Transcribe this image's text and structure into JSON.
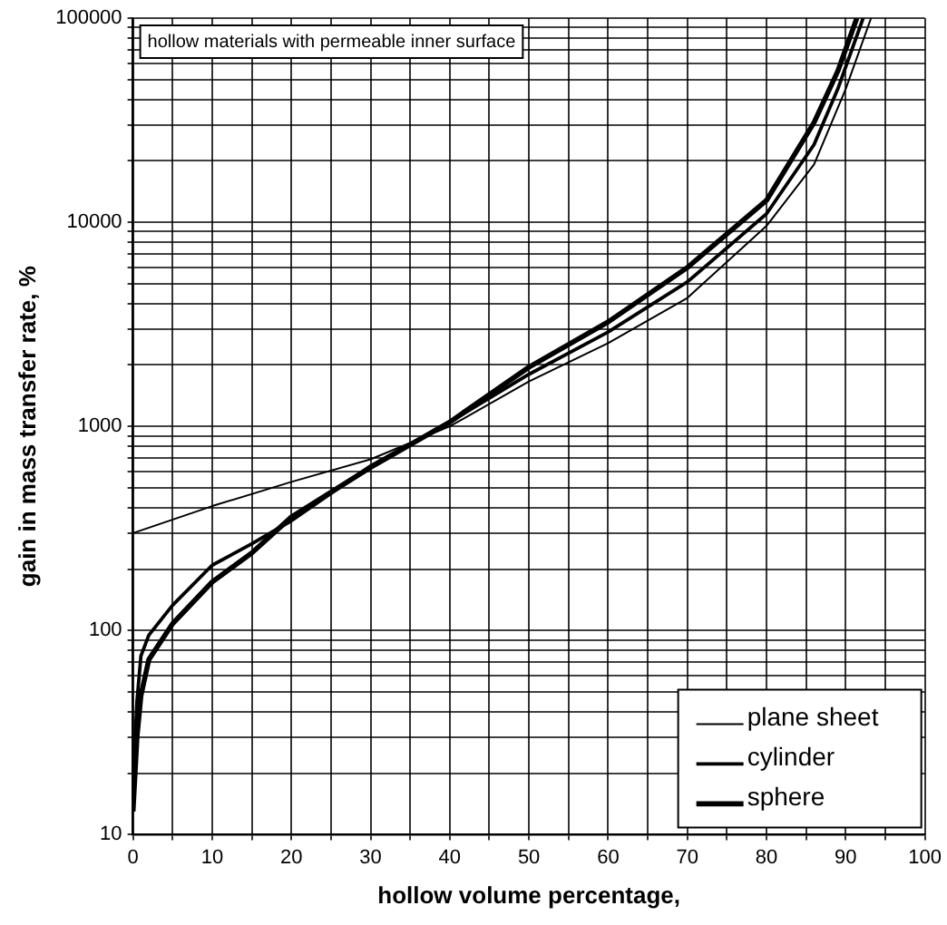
{
  "chart_data": {
    "type": "line",
    "xlabel": "hollow volume percentage,",
    "ylabel": "gain in mass transfer rate, %",
    "annotations": [
      "hollow materials with permeable inner surface"
    ],
    "log": "y",
    "grid": true,
    "legend": "bottom right",
    "marker": "none",
    "line_style": "solid",
    "xlim": [
      0,
      100
    ],
    "ylim": [
      10,
      100000
    ],
    "xticks": [
      0,
      {
        "value": 5,
        "label": null
      },
      10,
      {
        "value": 15,
        "label": null
      },
      20,
      {
        "value": 25,
        "label": null
      },
      30,
      {
        "value": 35,
        "label": null
      },
      40,
      {
        "value": 45,
        "label": null
      },
      50,
      {
        "value": 55,
        "label": null
      },
      60,
      {
        "value": 65,
        "label": null
      },
      70,
      {
        "value": 75,
        "label": null
      },
      80,
      {
        "value": 85,
        "label": null
      },
      90,
      {
        "value": 95,
        "label": null
      },
      100
    ],
    "yticks": [
      10,
      {
        "value": 20,
        "label": null
      },
      {
        "value": 30,
        "label": null
      },
      {
        "value": 40,
        "label": null
      },
      {
        "value": 50,
        "label": null
      },
      {
        "value": 60,
        "label": null
      },
      {
        "value": 70,
        "label": null
      },
      {
        "value": 80,
        "label": null
      },
      {
        "value": 90,
        "label": null
      },
      100,
      {
        "value": 200,
        "label": null
      },
      {
        "value": 300,
        "label": null
      },
      {
        "value": 400,
        "label": null
      },
      {
        "value": 500,
        "label": null
      },
      {
        "value": 600,
        "label": null
      },
      {
        "value": 700,
        "label": null
      },
      {
        "value": 800,
        "label": null
      },
      {
        "value": 900,
        "label": null
      },
      1000,
      {
        "value": 2000,
        "label": null
      },
      {
        "value": 3000,
        "label": null
      },
      {
        "value": 4000,
        "label": null
      },
      {
        "value": 5000,
        "label": null
      },
      {
        "value": 6000,
        "label": null
      },
      {
        "value": 7000,
        "label": null
      },
      {
        "value": 8000,
        "label": null
      },
      {
        "value": 9000,
        "label": null
      },
      10000,
      {
        "value": 20000,
        "label": null
      },
      {
        "value": 30000,
        "label": null
      },
      {
        "value": 40000,
        "label": null
      },
      {
        "value": 50000,
        "label": null
      },
      {
        "value": 60000,
        "label": null
      },
      {
        "value": 70000,
        "label": null
      },
      {
        "value": 80000,
        "label": null
      },
      {
        "value": 90000,
        "label": null
      },
      100000
    ],
    "series": [
      {
        "name": "plane sheet",
        "color": "#000000",
        "x": [
          0,
          10,
          20,
          30,
          40,
          50,
          60,
          70,
          80,
          86,
          90,
          93.2
        ],
        "values": [
          300,
          407,
          535,
          690,
          1000,
          1660,
          2560,
          4260,
          9600,
          19200,
          45000,
          100000
        ]
      },
      {
        "name": "cylinder",
        "color": "#000000",
        "x": [
          0,
          0.5,
          1,
          2,
          5,
          10,
          15,
          20,
          30,
          40,
          50,
          60,
          70,
          80,
          86,
          89,
          92.2
        ],
        "values": [
          18,
          45,
          75,
          95,
          133,
          209,
          266,
          345,
          640,
          1050,
          1800,
          2900,
          5100,
          11000,
          24000,
          45000,
          100000
        ]
      },
      {
        "name": "sphere",
        "color": "#000000",
        "x": [
          0,
          0.5,
          1,
          2,
          5,
          10,
          15,
          20,
          30,
          40,
          50,
          60,
          70,
          80,
          86,
          89,
          91.4
        ],
        "values": [
          13,
          30,
          48,
          72,
          108,
          173,
          240,
          360,
          630,
          1050,
          1950,
          3250,
          6000,
          12800,
          30800,
          55000,
          100000
        ]
      }
    ]
  }
}
